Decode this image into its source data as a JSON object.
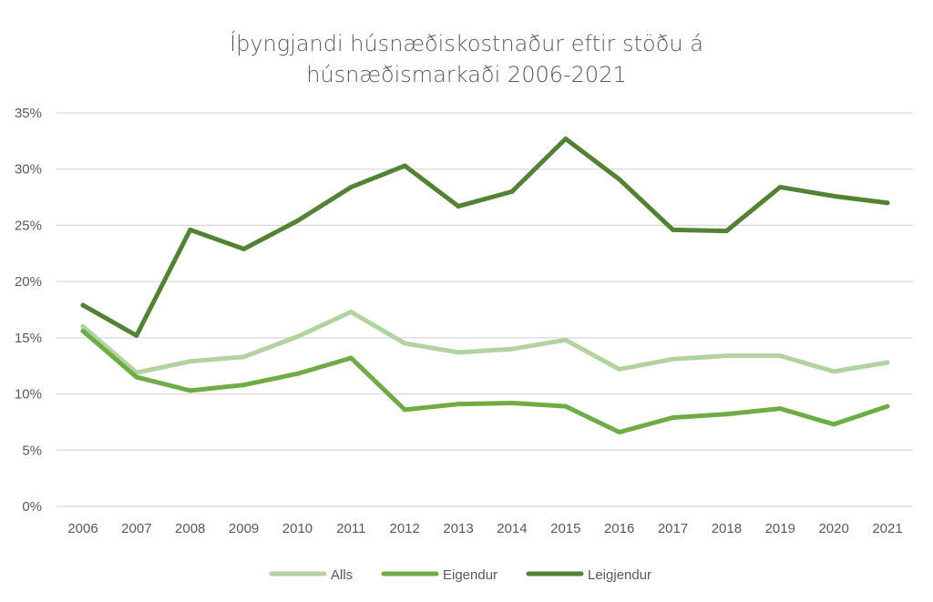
{
  "chart_data": {
    "type": "line",
    "title": [
      "Íþyngjandi húsnæðiskostnaður eftir stöðu á",
      "húsnæðismarkaði 2006-2021"
    ],
    "xlabel": "",
    "ylabel": "",
    "x": [
      "2006",
      "2007",
      "2008",
      "2009",
      "2010",
      "2011",
      "2012",
      "2013",
      "2014",
      "2015",
      "2016",
      "2017",
      "2018",
      "2019",
      "2020",
      "2021"
    ],
    "ylim": [
      0,
      35
    ],
    "yticks": [
      0,
      5,
      10,
      15,
      20,
      25,
      30,
      35
    ],
    "ytick_labels": [
      "0%",
      "5%",
      "10%",
      "15%",
      "20%",
      "25%",
      "30%",
      "35%"
    ],
    "grid": true,
    "legend_position": "bottom",
    "series": [
      {
        "name": "Alls",
        "color": "#b2d3a0",
        "values": [
          16.0,
          11.9,
          12.9,
          13.3,
          15.1,
          17.3,
          14.5,
          13.7,
          14.0,
          14.8,
          12.2,
          13.1,
          13.4,
          13.4,
          12.0,
          12.8
        ]
      },
      {
        "name": "Eigendur",
        "color": "#6fac45",
        "values": [
          15.6,
          11.5,
          10.3,
          10.8,
          11.8,
          13.2,
          8.6,
          9.1,
          9.2,
          8.9,
          6.6,
          7.9,
          8.2,
          8.7,
          7.3,
          8.9
        ]
      },
      {
        "name": "Leigjendur",
        "color": "#538235",
        "values": [
          17.9,
          15.2,
          24.6,
          22.9,
          25.4,
          28.4,
          30.3,
          26.7,
          28.0,
          32.7,
          29.1,
          24.6,
          24.5,
          28.4,
          27.6,
          27.0
        ]
      }
    ]
  }
}
